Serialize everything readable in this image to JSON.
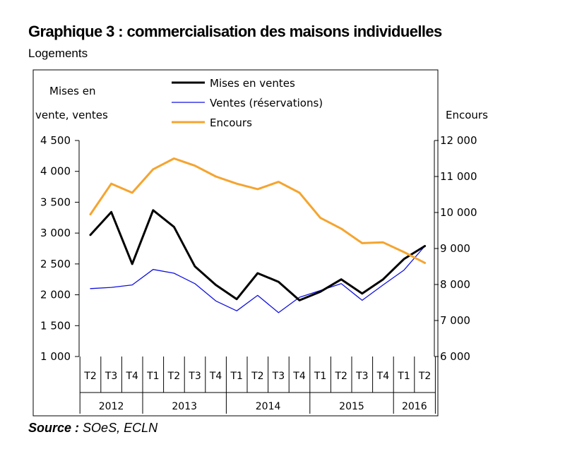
{
  "title": "Graphique 3 : commercialisation des maisons individuelles",
  "subtitle": "Logements",
  "source": {
    "label": "Source :",
    "text": "SOeS, ECLN"
  },
  "chart_data": {
    "type": "line",
    "left_axis_label_line1": "Mises en",
    "left_axis_label_line2": "vente, ventes",
    "right_axis_label": "Encours",
    "left_ylim": [
      1000,
      4500
    ],
    "left_ticks": [
      1000,
      1500,
      2000,
      2500,
      3000,
      3500,
      4000,
      4500
    ],
    "left_tick_labels": [
      "1 000",
      "1 500",
      "2 000",
      "2 500",
      "3 000",
      "3 500",
      "4 000",
      "4 500"
    ],
    "right_ylim": [
      6000,
      12000
    ],
    "right_ticks": [
      6000,
      7000,
      8000,
      9000,
      10000,
      11000,
      12000
    ],
    "right_tick_labels": [
      "6 000",
      "7 000",
      "8 000",
      "9 000",
      "10 000",
      "11 000",
      "12 000"
    ],
    "categories": [
      "T2",
      "T3",
      "T4",
      "T1",
      "T2",
      "T3",
      "T4",
      "T1",
      "T2",
      "T3",
      "T4",
      "T1",
      "T2",
      "T3",
      "T4",
      "T1",
      "T2"
    ],
    "years": [
      {
        "label": "2012",
        "span": 3
      },
      {
        "label": "2013",
        "span": 4
      },
      {
        "label": "2014",
        "span": 4
      },
      {
        "label": "2015",
        "span": 4
      },
      {
        "label": "2016",
        "span": 2
      }
    ],
    "legend_position": "top-center",
    "grid": false,
    "series": [
      {
        "name": "Mises en ventes",
        "axis": "left",
        "color": "#000000",
        "width": 3,
        "values": [
          2970,
          3340,
          2500,
          3370,
          3100,
          2460,
          2160,
          1930,
          2350,
          2210,
          1910,
          2050,
          2250,
          2020,
          2250,
          2580,
          2790
        ]
      },
      {
        "name": "Ventes (réservations)",
        "axis": "left",
        "color": "#1010e0",
        "width": 1.3,
        "values": [
          2100,
          2120,
          2160,
          2410,
          2350,
          2180,
          1900,
          1740,
          1990,
          1710,
          1960,
          2070,
          2180,
          1910,
          2160,
          2400,
          2790
        ]
      },
      {
        "name": "Encours",
        "axis": "right",
        "color": "#f5a42f",
        "width": 3,
        "values": [
          9950,
          10800,
          10550,
          11200,
          11500,
          11300,
          11000,
          10800,
          10650,
          10850,
          10550,
          9850,
          9550,
          9150,
          9170,
          8900,
          8600
        ]
      }
    ]
  }
}
